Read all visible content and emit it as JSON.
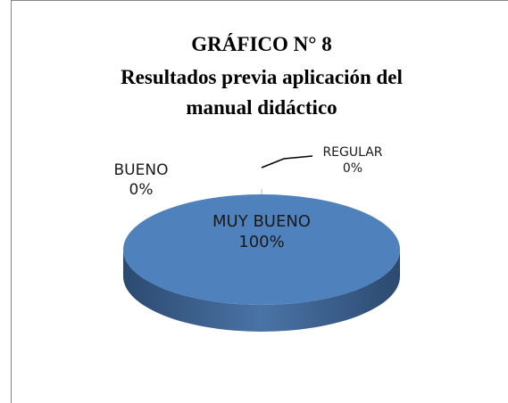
{
  "chart_data": {
    "type": "pie",
    "title": [
      "GRÁFICO N° 8",
      "Resultados previa aplicación del",
      "manual didáctico"
    ],
    "categories": [
      "MUY BUENO",
      "BUENO",
      "REGULAR"
    ],
    "values": [
      100,
      0,
      0
    ],
    "value_labels": [
      "100%",
      "0%",
      "0%"
    ],
    "colors": [
      "#4f81bd",
      "#c0504d",
      "#9bbb59"
    ]
  }
}
